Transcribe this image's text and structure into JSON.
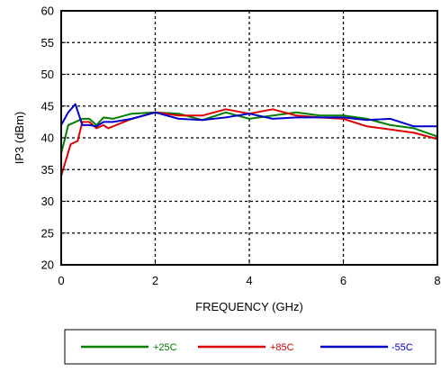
{
  "chart_data": {
    "type": "line",
    "title": "",
    "xlabel": "FREQUENCY (GHz)",
    "ylabel": "IP3 (dBm)",
    "xlim": [
      0,
      8
    ],
    "ylim": [
      20,
      60
    ],
    "x_ticks": [
      0,
      2,
      4,
      6,
      8
    ],
    "y_ticks": [
      20,
      25,
      30,
      35,
      40,
      45,
      50,
      55,
      60
    ],
    "grid": "dashed",
    "legend_position": "bottom",
    "series": [
      {
        "name": "+25C",
        "color": "#008000",
        "x": [
          0,
          0.15,
          0.3,
          0.45,
          0.6,
          0.75,
          0.9,
          1.1,
          1.5,
          2,
          2.5,
          3,
          3.5,
          4,
          4.5,
          5,
          5.5,
          6,
          6.5,
          7,
          7.5,
          8
        ],
        "y": [
          37.5,
          42,
          42.5,
          43,
          43,
          42,
          43.2,
          43,
          43.8,
          44,
          43.8,
          42.8,
          44,
          43,
          43.5,
          44,
          43.5,
          43.5,
          43,
          42,
          41.5,
          40.2
        ]
      },
      {
        "name": "+85C",
        "color": "#dd0000",
        "x": [
          0,
          0.2,
          0.35,
          0.45,
          0.6,
          0.75,
          0.9,
          1.0,
          1.5,
          2,
          2.5,
          3,
          3.5,
          4,
          4.5,
          5,
          5.5,
          6,
          6.5,
          7,
          7.5,
          8
        ],
        "y": [
          34,
          39,
          39.5,
          42.5,
          42.5,
          41.5,
          42,
          41.5,
          43,
          44,
          43.5,
          43.5,
          44.5,
          43.8,
          44.5,
          43.5,
          43.2,
          43,
          41.8,
          41.3,
          40.8,
          39.8
        ]
      },
      {
        "name": "-55C",
        "color": "#0000cc",
        "x": [
          0,
          0.15,
          0.3,
          0.45,
          0.6,
          0.75,
          0.9,
          1.1,
          1.5,
          2,
          2.5,
          3,
          3.5,
          4,
          4.5,
          5,
          5.5,
          6,
          6.5,
          7,
          7.5,
          8
        ],
        "y": [
          42,
          44,
          45.3,
          42,
          42,
          41.8,
          42.5,
          42.5,
          43,
          44,
          43,
          42.8,
          43.2,
          43.8,
          43,
          43.2,
          43.2,
          43.2,
          42.8,
          43,
          41.8,
          41.8
        ]
      }
    ]
  }
}
